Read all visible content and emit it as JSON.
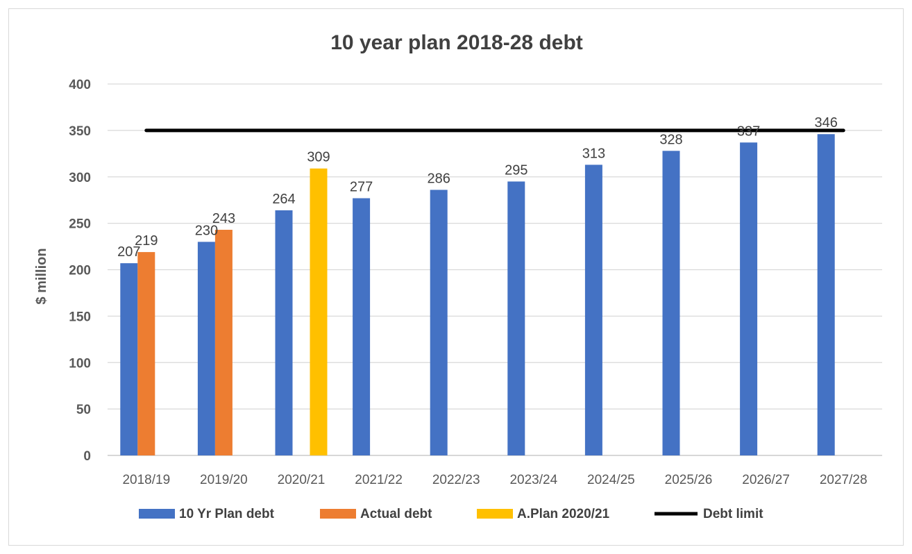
{
  "chart_data": {
    "type": "bar",
    "title": "10 year plan 2018-28 debt",
    "xlabel": "",
    "ylabel": "$ million",
    "ylim": [
      0,
      400
    ],
    "yticks": [
      0,
      50,
      100,
      150,
      200,
      250,
      300,
      350,
      400
    ],
    "grid": true,
    "legend_position": "bottom",
    "categories": [
      "2018/19",
      "2019/20",
      "2020/21",
      "2021/22",
      "2022/23",
      "2023/24",
      "2024/25",
      "2025/26",
      "2026/27",
      "2027/28"
    ],
    "series": [
      {
        "name": "10 Yr Plan debt",
        "type": "bar",
        "color": "#4472C4",
        "values": [
          207,
          230,
          264,
          277,
          286,
          295,
          313,
          328,
          337,
          346
        ]
      },
      {
        "name": "Actual debt",
        "type": "bar",
        "color": "#ED7D31",
        "values": [
          219,
          243,
          null,
          null,
          null,
          null,
          null,
          null,
          null,
          null
        ]
      },
      {
        "name": "A.Plan 2020/21",
        "type": "bar",
        "color": "#FFC000",
        "values": [
          null,
          null,
          309,
          null,
          null,
          null,
          null,
          null,
          null,
          null
        ]
      },
      {
        "name": "Debt limit",
        "type": "line",
        "color": "#000000",
        "values": [
          350,
          350,
          350,
          350,
          350,
          350,
          350,
          350,
          350,
          350
        ]
      }
    ]
  }
}
